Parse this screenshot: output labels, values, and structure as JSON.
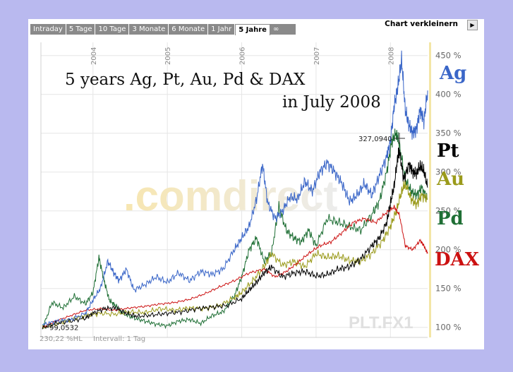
{
  "toolbar": {
    "tabs": [
      "Intraday",
      "5 Tage",
      "10 Tage",
      "3 Monate",
      "6 Monate",
      "1 Jahr",
      "5 Jahre",
      "∞"
    ],
    "active_tab": "5 Jahre",
    "shrink_label": "Chart verkleinern",
    "shrink_icon": "play-arrow-icon"
  },
  "footer": {
    "stat": "230,22 %HL",
    "interval": "Intervall: 1 Tag",
    "symbol": "PLT.FX1"
  },
  "watermark": ".comdirect",
  "chart_data": {
    "type": "line",
    "title_line1": "5 years Ag, Pt, Au, Pd & DAX",
    "title_line2": "in July 2008",
    "x_tick_labels": [
      "2004",
      "2005",
      "2006",
      "2007",
      "2008"
    ],
    "y_tick_labels": [
      "100 %",
      "150 %",
      "200 %",
      "250 %",
      "300 %",
      "350 %",
      "400 %",
      "450 %"
    ],
    "y_ticks": [
      100,
      150,
      200,
      250,
      300,
      350,
      400,
      450
    ],
    "ylim": [
      87,
      467
    ],
    "xlim": [
      2003.3,
      2008.5
    ],
    "grid": true,
    "start_label": "99,0532",
    "peak_label": "327,0940",
    "peak_value": 327,
    "series": [
      {
        "name": "Ag",
        "color": "#3a66c8",
        "x": [
          2003.32,
          2003.5,
          2003.7,
          2003.9,
          2004.0,
          2004.1,
          2004.2,
          2004.28,
          2004.35,
          2004.45,
          2004.55,
          2004.7,
          2004.85,
          2005.0,
          2005.15,
          2005.3,
          2005.45,
          2005.6,
          2005.75,
          2005.9,
          2006.0,
          2006.1,
          2006.2,
          2006.28,
          2006.35,
          2006.45,
          2006.55,
          2006.65,
          2006.75,
          2006.85,
          2006.95,
          2007.05,
          2007.15,
          2007.25,
          2007.35,
          2007.45,
          2007.55,
          2007.65,
          2007.75,
          2007.85,
          2007.95,
          2008.0,
          2008.05,
          2008.1,
          2008.15,
          2008.2,
          2008.25,
          2008.3,
          2008.35,
          2008.4,
          2008.45,
          2008.5
        ],
        "values": [
          103,
          108,
          110,
          118,
          135,
          150,
          185,
          170,
          160,
          175,
          148,
          155,
          165,
          158,
          170,
          160,
          172,
          168,
          175,
          200,
          215,
          230,
          265,
          310,
          260,
          240,
          250,
          268,
          265,
          288,
          275,
          300,
          312,
          300,
          285,
          262,
          270,
          285,
          270,
          295,
          320,
          340,
          385,
          410,
          445,
          380,
          360,
          350,
          355,
          380,
          365,
          405
        ]
      },
      {
        "name": "Pt",
        "color": "#000000",
        "x": [
          2003.32,
          2003.5,
          2003.7,
          2003.9,
          2004.0,
          2004.15,
          2004.3,
          2004.45,
          2004.6,
          2004.8,
          2005.0,
          2005.2,
          2005.4,
          2005.6,
          2005.8,
          2006.0,
          2006.1,
          2006.2,
          2006.3,
          2006.4,
          2006.55,
          2006.7,
          2006.85,
          2007.0,
          2007.15,
          2007.3,
          2007.45,
          2007.6,
          2007.75,
          2007.85,
          2007.95,
          2008.0,
          2008.05,
          2008.1,
          2008.12,
          2008.18,
          2008.25,
          2008.3,
          2008.35,
          2008.4,
          2008.45,
          2008.5
        ],
        "values": [
          99,
          105,
          108,
          112,
          118,
          124,
          125,
          118,
          114,
          116,
          118,
          120,
          124,
          126,
          128,
          137,
          148,
          158,
          170,
          178,
          165,
          170,
          172,
          166,
          168,
          175,
          178,
          188,
          205,
          215,
          235,
          260,
          282,
          320,
          327,
          290,
          310,
          300,
          298,
          308,
          302,
          280
        ]
      },
      {
        "name": "Au",
        "color": "#9a9a1a",
        "x": [
          2003.32,
          2003.5,
          2003.7,
          2003.9,
          2004.1,
          2004.3,
          2004.5,
          2004.7,
          2004.9,
          2005.1,
          2005.3,
          2005.5,
          2005.7,
          2005.9,
          2006.0,
          2006.15,
          2006.3,
          2006.4,
          2006.55,
          2006.7,
          2006.85,
          2007.0,
          2007.15,
          2007.3,
          2007.45,
          2007.6,
          2007.75,
          2007.9,
          2008.0,
          2008.08,
          2008.15,
          2008.2,
          2008.28,
          2008.35,
          2008.42,
          2008.5
        ],
        "values": [
          100,
          104,
          110,
          115,
          118,
          117,
          120,
          119,
          124,
          122,
          125,
          124,
          128,
          138,
          145,
          160,
          178,
          195,
          180,
          185,
          178,
          195,
          190,
          192,
          186,
          185,
          195,
          212,
          230,
          250,
          275,
          285,
          265,
          258,
          270,
          265
        ]
      },
      {
        "name": "Pd",
        "color": "#1f6f35",
        "x": [
          2003.32,
          2003.45,
          2003.6,
          2003.75,
          2003.9,
          2004.0,
          2004.08,
          2004.15,
          2004.22,
          2004.3,
          2004.4,
          2004.55,
          2004.7,
          2004.85,
          2005.0,
          2005.15,
          2005.3,
          2005.45,
          2005.6,
          2005.75,
          2005.9,
          2006.0,
          2006.1,
          2006.2,
          2006.3,
          2006.4,
          2006.5,
          2006.6,
          2006.7,
          2006.8,
          2006.9,
          2007.0,
          2007.15,
          2007.3,
          2007.45,
          2007.6,
          2007.75,
          2007.85,
          2007.95,
          2008.02,
          2008.08,
          2008.12,
          2008.2,
          2008.28,
          2008.35,
          2008.42,
          2008.5
        ],
        "values": [
          98,
          132,
          125,
          140,
          130,
          145,
          190,
          160,
          135,
          128,
          118,
          112,
          108,
          104,
          102,
          108,
          110,
          105,
          115,
          120,
          140,
          165,
          200,
          215,
          185,
          195,
          255,
          225,
          215,
          210,
          225,
          205,
          240,
          235,
          230,
          225,
          245,
          262,
          300,
          340,
          350,
          335,
          290,
          275,
          270,
          280,
          265
        ]
      },
      {
        "name": "DAX",
        "color": "#cc1111",
        "x": [
          2003.32,
          2003.5,
          2003.7,
          2003.9,
          2004.1,
          2004.3,
          2004.5,
          2004.7,
          2004.9,
          2005.1,
          2005.3,
          2005.5,
          2005.7,
          2005.9,
          2006.1,
          2006.3,
          2006.45,
          2006.6,
          2006.75,
          2006.9,
          2007.05,
          2007.2,
          2007.35,
          2007.5,
          2007.65,
          2007.8,
          2007.95,
          2008.05,
          2008.12,
          2008.2,
          2008.3,
          2008.4,
          2008.45,
          2008.5
        ],
        "values": [
          100,
          108,
          115,
          122,
          124,
          122,
          125,
          127,
          130,
          132,
          136,
          143,
          152,
          160,
          170,
          175,
          165,
          172,
          183,
          195,
          205,
          210,
          222,
          235,
          240,
          235,
          248,
          255,
          245,
          205,
          200,
          212,
          205,
          195
        ]
      }
    ]
  },
  "series_labels": [
    {
      "text": "Ag",
      "color": "#3a66c8"
    },
    {
      "text": "Pt",
      "color": "#000000"
    },
    {
      "text": "Au",
      "color": "#9a9a1a"
    },
    {
      "text": "Pd",
      "color": "#1f6f35"
    },
    {
      "text": "DAX",
      "color": "#cc1111"
    }
  ]
}
